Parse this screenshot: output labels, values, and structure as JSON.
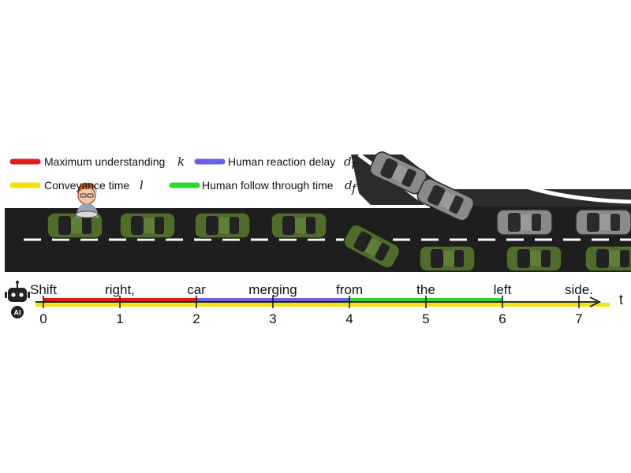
{
  "legend": [
    {
      "id": "k",
      "label": "Maximum understanding",
      "symbol": "k",
      "sub": "",
      "color": "#e01b1b"
    },
    {
      "id": "dr",
      "label": "Human reaction delay",
      "symbol": "d",
      "sub": "r",
      "color": "#6b5fe6"
    },
    {
      "id": "l",
      "label": "Conveyance time",
      "symbol": "l",
      "sub": "",
      "color": "#f5e10f"
    },
    {
      "id": "df",
      "label": "Human follow through time",
      "symbol": "d",
      "sub": "f",
      "color": "#29d92b"
    }
  ],
  "timeline": {
    "axis_label": "t",
    "ticks": [
      "0",
      "1",
      "2",
      "3",
      "4",
      "5",
      "6",
      "7"
    ],
    "words": [
      "Shift",
      "right,",
      "car",
      "merging",
      "from",
      "the",
      "left",
      "side."
    ],
    "segments": [
      {
        "id": "k",
        "start": 0,
        "end": 2
      },
      {
        "id": "dr",
        "start": 2,
        "end": 4
      },
      {
        "id": "df",
        "start": 4,
        "end": 6
      },
      {
        "id": "l",
        "start": 0,
        "end": 7.4
      }
    ]
  },
  "icons": {
    "robot": "robot-icon",
    "robot_badge": "AI",
    "driver": "driver-icon"
  }
}
